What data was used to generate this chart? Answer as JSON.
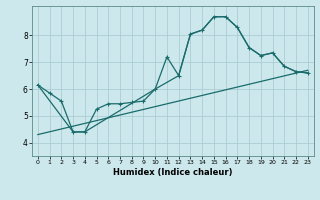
{
  "xlabel": "Humidex (Indice chaleur)",
  "background_color": "#cce8ec",
  "grid_color": "#aacdd4",
  "line_color": "#1a6b6b",
  "xlim": [
    -0.5,
    23.5
  ],
  "ylim": [
    3.5,
    9.1
  ],
  "yticks": [
    4,
    5,
    6,
    7,
    8
  ],
  "xticks": [
    0,
    1,
    2,
    3,
    4,
    5,
    6,
    7,
    8,
    9,
    10,
    11,
    12,
    13,
    14,
    15,
    16,
    17,
    18,
    19,
    20,
    21,
    22,
    23
  ],
  "line1_x": [
    0,
    1,
    2,
    3,
    4,
    5,
    6,
    7,
    8,
    9,
    10,
    11,
    12,
    13,
    14,
    15,
    16,
    17,
    18,
    19,
    20,
    21,
    22,
    23
  ],
  "line1_y": [
    6.15,
    5.85,
    5.55,
    4.4,
    4.4,
    5.25,
    5.45,
    5.45,
    5.5,
    5.55,
    6.0,
    7.2,
    6.5,
    8.05,
    8.2,
    8.7,
    8.7,
    8.3,
    7.55,
    7.25,
    7.35,
    6.85,
    6.65,
    6.6
  ],
  "line2_x": [
    0,
    3,
    4,
    10,
    12,
    13,
    14,
    15,
    16,
    17,
    18,
    19,
    20,
    21,
    22,
    23
  ],
  "line2_y": [
    6.15,
    4.4,
    4.4,
    6.0,
    6.5,
    8.05,
    8.2,
    8.7,
    8.7,
    8.3,
    7.55,
    7.25,
    7.35,
    6.85,
    6.65,
    6.6
  ],
  "line3_x": [
    0,
    23
  ],
  "line3_y": [
    4.3,
    6.7
  ]
}
